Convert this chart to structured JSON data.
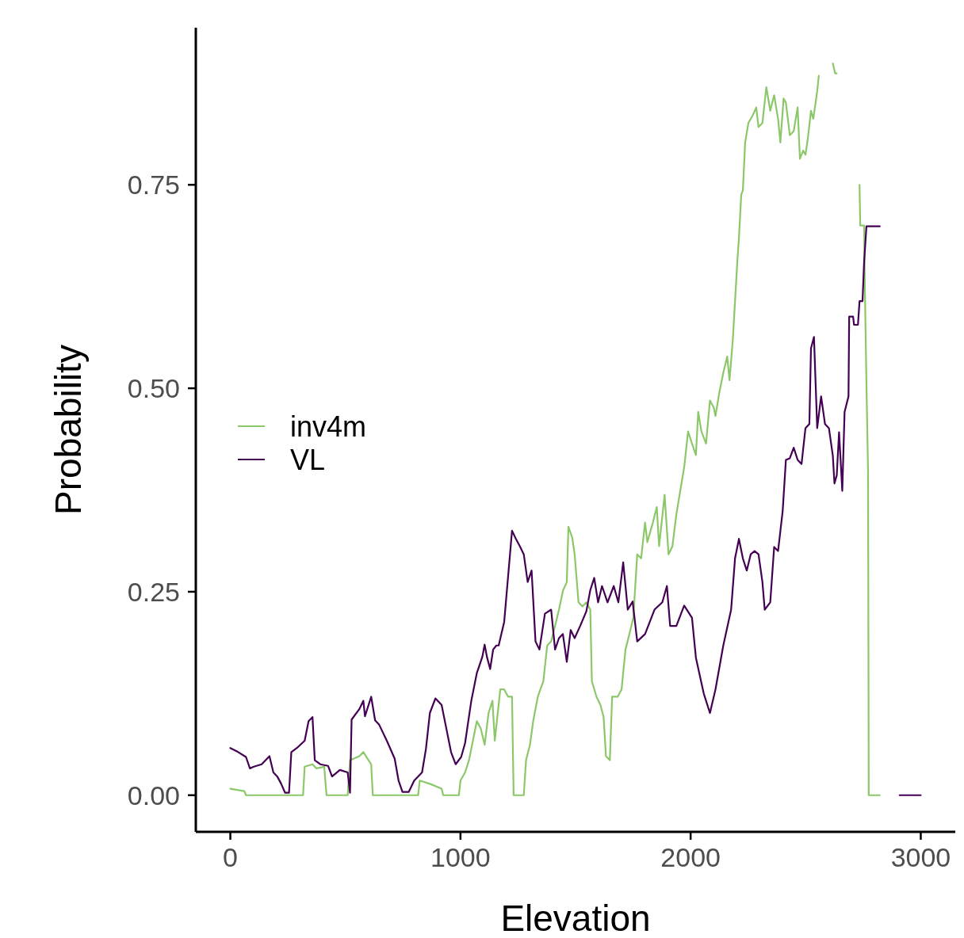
{
  "chart_data": {
    "type": "line",
    "xlabel": "Elevation",
    "ylabel": "Probability",
    "xlim": [
      -150,
      3150
    ],
    "ylim": [
      -0.045,
      0.943
    ],
    "xticks": [
      0,
      1000,
      2000,
      3000
    ],
    "yticks": [
      {
        "value": 0,
        "label": "0.00"
      },
      {
        "value": 0.25,
        "label": "0.25"
      },
      {
        "value": 0.5,
        "label": "0.50"
      },
      {
        "value": 0.75,
        "label": "0.75"
      }
    ],
    "grid": false,
    "legend": "left",
    "line_style": "solid",
    "marker": "none",
    "series": [
      {
        "name": "inv4m",
        "color": "#8cc86a",
        "x": [
          0,
          61,
          68,
          316,
          323,
          357,
          374,
          408,
          418,
          510,
          520,
          561,
          578,
          612,
          619,
          816,
          823,
          867,
          918,
          925,
          993,
          1000,
          1020,
          1037,
          1054,
          1071,
          1088,
          1105,
          1122,
          1139,
          1149,
          1173,
          1190,
          1207,
          1224,
          1231,
          1275,
          1285,
          1302,
          1316,
          1336,
          1360,
          1377,
          1394,
          1411,
          1428,
          1445,
          1462,
          1469,
          1486,
          1496,
          1513,
          1530,
          1547,
          1564,
          1571,
          1591,
          1608,
          1622,
          1632,
          1649,
          1659,
          1683,
          1700,
          1717,
          1734,
          1751,
          1768,
          1785,
          1802,
          1812,
          1836,
          1853,
          1863,
          1887,
          1904,
          1921,
          1938,
          1955,
          1972,
          1989,
          2006,
          2023,
          2033,
          2047,
          2067,
          2084,
          2101,
          2108,
          2125,
          2142,
          2159,
          2169,
          2183,
          2193,
          2203,
          2210,
          2220,
          2227,
          2237,
          2251,
          2271,
          2285,
          2295,
          2312,
          2329,
          2346,
          2363,
          2380,
          2390,
          2404,
          2414,
          2431,
          2448,
          2465,
          2475,
          2489,
          2499,
          2509,
          2523,
          2533,
          2550,
          2557,
          2570,
          2618,
          2628,
          2635,
          2680,
          2734,
          2737,
          2754,
          2757,
          2764,
          2771,
          2774,
          2822
        ],
        "values": [
          0.008,
          0.005,
          0,
          0,
          0.035,
          0.038,
          0.033,
          0.035,
          0,
          0,
          0.043,
          0.048,
          0.053,
          0.038,
          0,
          0,
          0.018,
          0.014,
          0.008,
          0,
          0,
          0.018,
          0.028,
          0.043,
          0.067,
          0.091,
          0.082,
          0.062,
          0.101,
          0.116,
          0.067,
          0.13,
          0.13,
          0.121,
          0.121,
          0,
          0,
          0.043,
          0.062,
          0.091,
          0.121,
          0.14,
          0.184,
          0.189,
          0.208,
          0.228,
          0.251,
          0.262,
          0.33,
          0.316,
          0.296,
          0.237,
          0.232,
          0.237,
          0.228,
          0.14,
          0.121,
          0.111,
          0.096,
          0.048,
          0.043,
          0.121,
          0.121,
          0.13,
          0.179,
          0.198,
          0.218,
          0.296,
          0.291,
          0.335,
          0.311,
          0.335,
          0.354,
          0.306,
          0.369,
          0.296,
          0.306,
          0.345,
          0.374,
          0.403,
          0.447,
          0.432,
          0.418,
          0.471,
          0.447,
          0.432,
          0.485,
          0.476,
          0.466,
          0.495,
          0.519,
          0.539,
          0.51,
          0.558,
          0.607,
          0.656,
          0.685,
          0.738,
          0.743,
          0.802,
          0.826,
          0.836,
          0.845,
          0.821,
          0.826,
          0.87,
          0.841,
          0.86,
          0.831,
          0.802,
          0.856,
          0.851,
          0.811,
          0.816,
          0.845,
          0.782,
          0.792,
          0.787,
          0.806,
          0.841,
          0.831,
          0.865,
          0.884,
          null,
          0.899,
          0.887,
          0.887,
          null,
          0.75,
          0.7,
          0.7,
          0.626,
          0.505,
          0.398,
          0,
          0
        ]
      },
      {
        "name": "VL",
        "color": "#440154",
        "x": [
          0,
          34,
          68,
          85,
          102,
          136,
          170,
          187,
          204,
          221,
          238,
          255,
          265,
          289,
          323,
          340,
          357,
          367,
          391,
          425,
          442,
          476,
          510,
          520,
          527,
          561,
          578,
          585,
          612,
          629,
          646,
          680,
          714,
          731,
          748,
          775,
          799,
          833,
          850,
          867,
          891,
          918,
          935,
          959,
          979,
          1003,
          1020,
          1047,
          1071,
          1095,
          1105,
          1115,
          1129,
          1142,
          1156,
          1166,
          1190,
          1224,
          1241,
          1258,
          1275,
          1292,
          1309,
          1326,
          1343,
          1367,
          1394,
          1411,
          1428,
          1445,
          1462,
          1479,
          1496,
          1520,
          1547,
          1564,
          1581,
          1598,
          1615,
          1639,
          1666,
          1686,
          1707,
          1727,
          1748,
          1768,
          1802,
          1843,
          1877,
          1897,
          1911,
          1938,
          1972,
          2006,
          2023,
          2057,
          2084,
          2108,
          2142,
          2176,
          2193,
          2210,
          2227,
          2244,
          2261,
          2278,
          2295,
          2312,
          2322,
          2346,
          2363,
          2380,
          2400,
          2414,
          2431,
          2448,
          2465,
          2482,
          2499,
          2516,
          2523,
          2536,
          2550,
          2567,
          2584,
          2601,
          2618,
          2625,
          2635,
          2645,
          2659,
          2669,
          2686,
          2689,
          2706,
          2710,
          2727,
          2734,
          2747,
          2754,
          2764,
          2822,
          2860,
          2908,
          3000
        ],
        "values": [
          0.058,
          0.053,
          0.047,
          0.033,
          0.035,
          0.038,
          0.048,
          0.028,
          0.023,
          0.014,
          0.003,
          0.003,
          0.053,
          0.058,
          0.067,
          0.091,
          0.096,
          0.043,
          0.038,
          0.036,
          0.023,
          0.031,
          0.028,
          0.003,
          0.093,
          0.106,
          0.116,
          0.097,
          0.121,
          0.092,
          0.087,
          0.067,
          0.045,
          0.018,
          0.004,
          0.004,
          0.018,
          0.028,
          0.057,
          0.101,
          0.119,
          0.111,
          0.087,
          0.053,
          0.038,
          0.047,
          0.064,
          0.116,
          0.15,
          0.17,
          0.185,
          0.17,
          0.155,
          0.179,
          0.184,
          0.184,
          0.213,
          0.325,
          0.315,
          0.306,
          0.296,
          0.262,
          0.276,
          0.189,
          0.179,
          0.223,
          0.228,
          0.179,
          0.193,
          0.198,
          0.164,
          0.203,
          0.193,
          0.208,
          0.226,
          0.252,
          0.267,
          0.237,
          0.257,
          0.237,
          0.257,
          0.237,
          0.286,
          0.228,
          0.238,
          0.189,
          0.198,
          0.228,
          0.237,
          0.257,
          0.208,
          0.208,
          0.233,
          0.218,
          0.169,
          0.125,
          0.101,
          0.13,
          0.184,
          0.228,
          0.291,
          0.315,
          0.291,
          0.276,
          0.296,
          0.3,
          0.296,
          0.262,
          0.228,
          0.237,
          0.305,
          0.3,
          0.349,
          0.412,
          0.414,
          0.427,
          0.412,
          0.407,
          0.451,
          0.456,
          0.549,
          0.563,
          0.451,
          0.49,
          0.456,
          0.451,
          0.417,
          0.383,
          0.393,
          0.446,
          0.374,
          0.471,
          0.49,
          0.588,
          0.588,
          0.578,
          0.578,
          0.607,
          0.607,
          0.656,
          0.699,
          0.699,
          null,
          0,
          0
        ]
      }
    ]
  }
}
